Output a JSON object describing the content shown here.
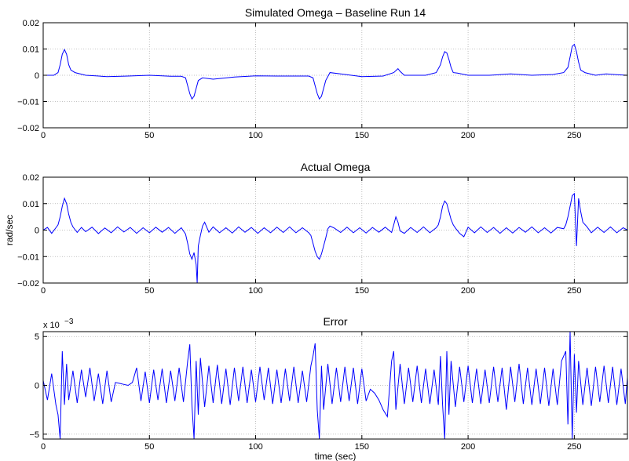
{
  "chart_data": [
    {
      "type": "line",
      "title": "Simulated Omega – Baseline Run 14",
      "xlabel": "",
      "ylabel": "",
      "xlim": [
        0,
        275
      ],
      "ylim": [
        -0.02,
        0.02
      ],
      "xticks": [
        0,
        50,
        100,
        150,
        200,
        250
      ],
      "xtick_labels": [
        "0",
        "50",
        "100",
        "150",
        "200",
        "250"
      ],
      "yticks": [
        -0.02,
        -0.01,
        0,
        0.01,
        0.02
      ],
      "ytick_labels": [
        "−0.02",
        "−0.01",
        "0",
        "0.01",
        "0.02"
      ],
      "grid": true,
      "color": "#0000ff",
      "series": [
        {
          "x": [
            0,
            5,
            7,
            8,
            9,
            10,
            11,
            12,
            13,
            15,
            20,
            30,
            40,
            50,
            60,
            65,
            67,
            68,
            69,
            70,
            71,
            72,
            73,
            75,
            80,
            90,
            100,
            110,
            120,
            125,
            127,
            128,
            129,
            130,
            131,
            132,
            133,
            135,
            140,
            150,
            160,
            165,
            167,
            168,
            170,
            175,
            180,
            185,
            187,
            188,
            189,
            190,
            191,
            192,
            193,
            195,
            200,
            210,
            220,
            230,
            240,
            245,
            247,
            248,
            249,
            250,
            251,
            252,
            253,
            255,
            260,
            265,
            270,
            275
          ],
          "y": [
            0,
            0,
            0.001,
            0.004,
            0.008,
            0.0098,
            0.008,
            0.004,
            0.002,
            0.001,
            0,
            -0.0005,
            -0.0003,
            0,
            -0.0004,
            -0.0004,
            -0.001,
            -0.004,
            -0.007,
            -0.009,
            -0.008,
            -0.005,
            -0.002,
            -0.001,
            -0.0015,
            -0.0007,
            -0.0002,
            -0.0003,
            -0.0003,
            -0.0003,
            -0.001,
            -0.004,
            -0.007,
            -0.009,
            -0.008,
            -0.005,
            -0.002,
            0.001,
            0.0005,
            -0.0005,
            -0.0003,
            0.001,
            0.0025,
            0.0015,
            0,
            0,
            0,
            0.001,
            0.004,
            0.007,
            0.009,
            0.0085,
            0.006,
            0.003,
            0.001,
            0.0008,
            0,
            0,
            0.0005,
            0,
            0.0003,
            0.001,
            0.003,
            0.007,
            0.011,
            0.0118,
            0.009,
            0.005,
            0.002,
            0.001,
            0,
            0.0005,
            0.0002,
            0
          ]
        }
      ]
    },
    {
      "type": "line",
      "title": "Actual Omega",
      "xlabel": "",
      "ylabel": "rad/sec",
      "xlim": [
        0,
        275
      ],
      "ylim": [
        -0.02,
        0.02
      ],
      "xticks": [
        0,
        50,
        100,
        150,
        200,
        250
      ],
      "xtick_labels": [
        "0",
        "50",
        "100",
        "150",
        "200",
        "250"
      ],
      "yticks": [
        -0.02,
        -0.01,
        0,
        0.01,
        0.02
      ],
      "ytick_labels": [
        "−0.02",
        "−0.01",
        "0",
        "0.01",
        "0.02"
      ],
      "grid": true,
      "color": "#0000ff",
      "series": [
        {
          "x": [
            0,
            2,
            4,
            6,
            7,
            8,
            9,
            10,
            11,
            12,
            13,
            14,
            16,
            18,
            20,
            23,
            26,
            29,
            32,
            35,
            38,
            41,
            44,
            47,
            50,
            53,
            56,
            59,
            62,
            65,
            67,
            68,
            69,
            70,
            71,
            72,
            72.5,
            73,
            74,
            75,
            76,
            78,
            80,
            83,
            86,
            89,
            92,
            95,
            98,
            101,
            104,
            107,
            110,
            113,
            116,
            119,
            122,
            125,
            126,
            127,
            128,
            129,
            130,
            131,
            132,
            133,
            134,
            135,
            137,
            140,
            143,
            146,
            149,
            152,
            155,
            158,
            161,
            164,
            165,
            166,
            167,
            168,
            170,
            173,
            176,
            179,
            182,
            185,
            186,
            187,
            188,
            189,
            190,
            191,
            192,
            193,
            194,
            196,
            198,
            200,
            203,
            206,
            209,
            212,
            215,
            218,
            221,
            224,
            227,
            230,
            233,
            236,
            239,
            242,
            245,
            246,
            247,
            248,
            249,
            250,
            251,
            252,
            253,
            254,
            256,
            258,
            261,
            264,
            267,
            270,
            273,
            275
          ],
          "y": [
            0,
            0.001,
            -0.0012,
            0.0009,
            0.002,
            0.005,
            0.009,
            0.012,
            0.01,
            0.006,
            0.003,
            0.0012,
            -0.0009,
            0.001,
            -0.0006,
            0.0011,
            -0.0013,
            0.0008,
            -0.001,
            0.0012,
            -0.0007,
            0.001,
            -0.0012,
            0.0009,
            -0.001,
            0.0011,
            -0.0008,
            0.001,
            -0.0012,
            0.0009,
            -0.0015,
            -0.005,
            -0.009,
            -0.011,
            -0.0085,
            -0.013,
            -0.02,
            -0.006,
            -0.002,
            0.0015,
            0.003,
            -0.0008,
            0.0012,
            -0.001,
            0.0009,
            -0.0011,
            0.0012,
            -0.0008,
            0.001,
            -0.0012,
            0.0009,
            -0.001,
            0.0011,
            -0.0009,
            0.0012,
            -0.001,
            0.0009,
            -0.001,
            -0.002,
            -0.005,
            -0.008,
            -0.01,
            -0.011,
            -0.009,
            -0.006,
            -0.003,
            0.0005,
            0.0015,
            0.0008,
            -0.0009,
            0.0011,
            -0.001,
            0.0009,
            -0.0011,
            0.001,
            -0.0008,
            0.0011,
            -0.0009,
            0.002,
            0.005,
            0.003,
            -0.0003,
            -0.0012,
            0.001,
            -0.0009,
            0.0012,
            -0.001,
            0.0009,
            0.002,
            0.005,
            0.009,
            0.011,
            0.01,
            0.007,
            0.004,
            0.002,
            0.0008,
            -0.0012,
            -0.0025,
            0.0011,
            -0.001,
            0.0012,
            -0.0009,
            0.001,
            -0.0012,
            0.0009,
            -0.0011,
            0.001,
            -0.0008,
            0.0012,
            -0.001,
            0.0009,
            -0.0011,
            0.001,
            0.0005,
            0.002,
            0.005,
            0.009,
            0.013,
            0.0138,
            -0.006,
            0.012,
            0.007,
            0.003,
            0.0012,
            -0.001,
            0.0011,
            -0.0009,
            0.0012,
            -0.001,
            0.0009,
            0
          ]
        }
      ]
    },
    {
      "type": "line",
      "title": "Error",
      "xlabel": "time (sec)",
      "ylabel": "",
      "xlim": [
        0,
        275
      ],
      "ylim": [
        -5.5,
        5.5
      ],
      "yscale_label": "x 10",
      "yscale_exponent": "−3",
      "xticks": [
        0,
        50,
        100,
        150,
        200,
        250
      ],
      "xtick_labels": [
        "0",
        "50",
        "100",
        "150",
        "200",
        "250"
      ],
      "yticks": [
        -5,
        0,
        5
      ],
      "ytick_labels": [
        "−5",
        "0",
        "5"
      ],
      "grid": true,
      "color": "#0000ff",
      "series": [
        {
          "x": [
            0,
            2,
            4,
            6,
            7,
            8,
            9,
            10,
            11,
            12,
            14,
            16,
            18,
            20,
            22,
            24,
            26,
            28,
            30,
            32,
            34,
            36,
            38,
            40,
            42,
            44,
            46,
            48,
            50,
            52,
            54,
            56,
            58,
            60,
            62,
            64,
            66,
            68,
            69,
            70,
            71,
            72,
            73,
            74,
            76,
            78,
            80,
            82,
            84,
            86,
            88,
            90,
            92,
            94,
            96,
            98,
            100,
            102,
            104,
            106,
            108,
            110,
            112,
            114,
            116,
            118,
            120,
            122,
            124,
            126,
            127,
            128,
            129,
            130,
            131,
            132,
            134,
            136,
            138,
            140,
            142,
            144,
            146,
            148,
            150,
            152,
            154,
            156,
            158,
            160,
            162,
            164,
            165,
            166,
            168,
            170,
            172,
            174,
            176,
            178,
            180,
            182,
            184,
            186,
            187,
            188,
            189,
            190,
            191,
            192,
            194,
            196,
            198,
            200,
            202,
            204,
            206,
            208,
            210,
            212,
            214,
            216,
            218,
            220,
            222,
            224,
            226,
            228,
            230,
            232,
            234,
            236,
            238,
            240,
            242,
            244,
            246,
            247,
            248,
            249,
            250,
            251,
            252,
            254,
            256,
            258,
            260,
            262,
            264,
            266,
            268,
            270,
            272,
            274,
            275
          ],
          "y": [
            0.5,
            -1.5,
            1.2,
            -2,
            -3,
            -5.5,
            3.5,
            -2,
            2.2,
            -1.5,
            1.5,
            -1.8,
            1.6,
            -1.2,
            1.8,
            -1.6,
            1.2,
            -1.9,
            1.5,
            -1.7,
            0.3,
            0.2,
            0.1,
            0,
            0.3,
            1.8,
            -1.6,
            1.4,
            -1.8,
            1.6,
            -1.5,
            1.7,
            -1.8,
            1.5,
            -1.6,
            1.8,
            -1.7,
            2.5,
            4.2,
            -2,
            -5.5,
            2.5,
            -3,
            2.8,
            -2.2,
            2,
            -1.8,
            2.1,
            -1.9,
            1.7,
            -2,
            1.8,
            -1.6,
            1.9,
            -1.8,
            1.6,
            -1.7,
            1.9,
            -1.5,
            1.8,
            -1.9,
            1.6,
            -1.8,
            1.7,
            -1.6,
            1.9,
            -1.8,
            1.5,
            -1.7,
            2,
            3,
            4.3,
            -2.5,
            -5.5,
            2,
            -2.5,
            2.2,
            -1.9,
            1.8,
            -1.7,
            1.9,
            -1.6,
            1.8,
            -1.9,
            1.7,
            -1.6,
            -0.4,
            -0.8,
            -1.5,
            -2.5,
            -3.2,
            2.5,
            3.5,
            -2.5,
            2.2,
            -1.9,
            1.8,
            -1.7,
            2,
            -1.8,
            1.7,
            -1.9,
            1.6,
            -2,
            3,
            -2,
            -5.5,
            3.5,
            -3,
            2.5,
            -2.2,
            1.9,
            -1.7,
            2,
            -1.8,
            1.7,
            -1.9,
            1.6,
            -1.8,
            1.9,
            -1.7,
            1.8,
            -2.5,
            1.9,
            -1.7,
            2.2,
            -1.9,
            1.8,
            -2,
            1.7,
            -1.9,
            1.8,
            -2.1,
            1.7,
            -2,
            2.5,
            3.5,
            -4,
            5.5,
            -5.5,
            3.2,
            -2.8,
            2.5,
            -2,
            1.8,
            -2.1,
            1.9,
            -1.7,
            2,
            -1.8,
            1.9,
            -2,
            1.7,
            -1.9,
            0.8
          ]
        }
      ]
    }
  ]
}
